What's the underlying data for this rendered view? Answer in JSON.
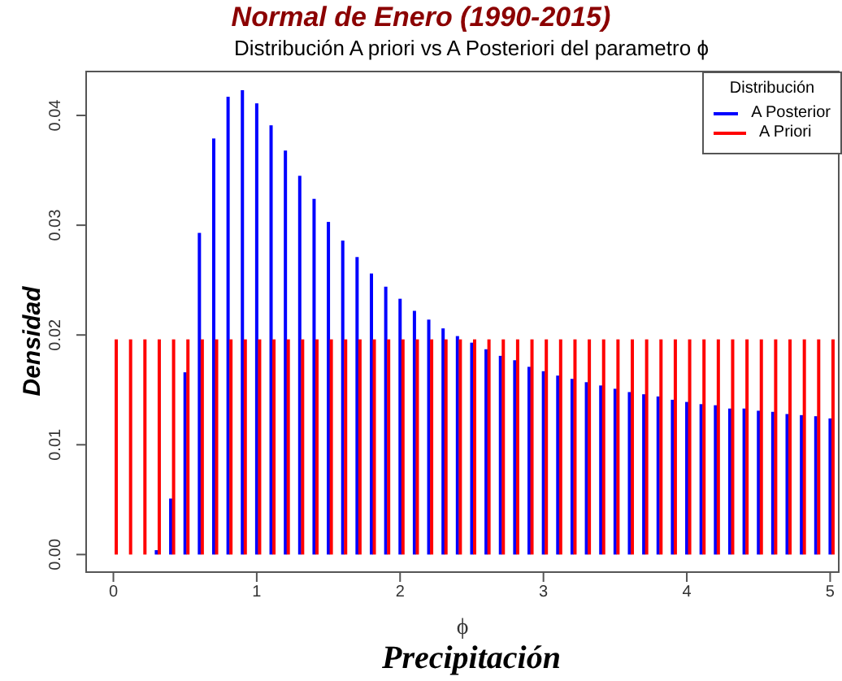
{
  "chart_data": {
    "type": "bar",
    "title": "Normal de Enero (1990-2015)",
    "subtitle": "Distribución A priori vs A Posteriori del parametro ϕ",
    "xlabel": "ϕ",
    "ylabel": "Densidad",
    "annotations": [
      "Precipitación"
    ],
    "legend_title": "Distribución",
    "legend": "top right",
    "xlim": [
      -0.19,
      5.06
    ],
    "xticks": [
      0,
      1,
      2,
      3,
      4,
      5
    ],
    "ylim": [
      -0.0016,
      0.044
    ],
    "yticks": [
      {
        "value": 0,
        "label": "0.00"
      },
      {
        "value": 0.01,
        "label": "0.01"
      },
      {
        "value": 0.02,
        "label": "0.02"
      },
      {
        "value": 0.03,
        "label": "0.03"
      },
      {
        "value": 0.04,
        "label": "0.04"
      }
    ],
    "series": [
      {
        "name": "A Posterior",
        "color": "#0000ff",
        "x": [
          0,
          0.1,
          0.2,
          0.3,
          0.4,
          0.5,
          0.6,
          0.7,
          0.8,
          0.9,
          1,
          1.1,
          1.2,
          1.3,
          1.4,
          1.5,
          1.6,
          1.7,
          1.8,
          1.9,
          2,
          2.1,
          2.2,
          2.3,
          2.4,
          2.5,
          2.6,
          2.7,
          2.8,
          2.9,
          3,
          3.1,
          3.2,
          3.3,
          3.4,
          3.5,
          3.6,
          3.7,
          3.8,
          3.9,
          4,
          4.1,
          4.2,
          4.3,
          4.4,
          4.5,
          4.6,
          4.7,
          4.8,
          4.9,
          5
        ],
        "values": [
          0,
          0,
          0,
          0.0004,
          0.0051,
          0.0166,
          0.0293,
          0.0379,
          0.0417,
          0.0423,
          0.0411,
          0.0391,
          0.0368,
          0.0345,
          0.0324,
          0.0303,
          0.0286,
          0.0271,
          0.0256,
          0.0244,
          0.0233,
          0.0222,
          0.0214,
          0.0206,
          0.0199,
          0.0193,
          0.0187,
          0.0181,
          0.0177,
          0.0171,
          0.0167,
          0.0163,
          0.016,
          0.0157,
          0.0154,
          0.0151,
          0.0148,
          0.0146,
          0.0144,
          0.0141,
          0.0139,
          0.0137,
          0.0136,
          0.0133,
          0.0133,
          0.0131,
          0.013,
          0.0128,
          0.0127,
          0.0126,
          0.0124
        ]
      },
      {
        "name": "A Priori",
        "color": "#ff0000",
        "x": [
          0.02,
          0.12,
          0.22,
          0.32,
          0.42,
          0.52,
          0.62,
          0.72,
          0.82,
          0.92,
          1.02,
          1.12,
          1.22,
          1.32,
          1.42,
          1.52,
          1.62,
          1.72,
          1.82,
          1.92,
          2.02,
          2.12,
          2.22,
          2.32,
          2.42,
          2.52,
          2.62,
          2.72,
          2.82,
          2.92,
          3.02,
          3.12,
          3.22,
          3.32,
          3.42,
          3.52,
          3.62,
          3.72,
          3.82,
          3.92,
          4.02,
          4.12,
          4.22,
          4.32,
          4.42,
          4.52,
          4.62,
          4.72,
          4.82,
          4.92,
          5.02
        ],
        "values": [
          0.0196,
          0.0196,
          0.0196,
          0.0196,
          0.0196,
          0.0196,
          0.0196,
          0.0196,
          0.0196,
          0.0196,
          0.0196,
          0.0196,
          0.0196,
          0.0196,
          0.0196,
          0.0196,
          0.0196,
          0.0196,
          0.0196,
          0.0196,
          0.0196,
          0.0196,
          0.0196,
          0.0196,
          0.0196,
          0.0196,
          0.0196,
          0.0196,
          0.0196,
          0.0196,
          0.0196,
          0.0196,
          0.0196,
          0.0196,
          0.0196,
          0.0196,
          0.0196,
          0.0196,
          0.0196,
          0.0196,
          0.0196,
          0.0196,
          0.0196,
          0.0196,
          0.0196,
          0.0196,
          0.0196,
          0.0196,
          0.0196,
          0.0196,
          0.0196
        ]
      }
    ]
  }
}
